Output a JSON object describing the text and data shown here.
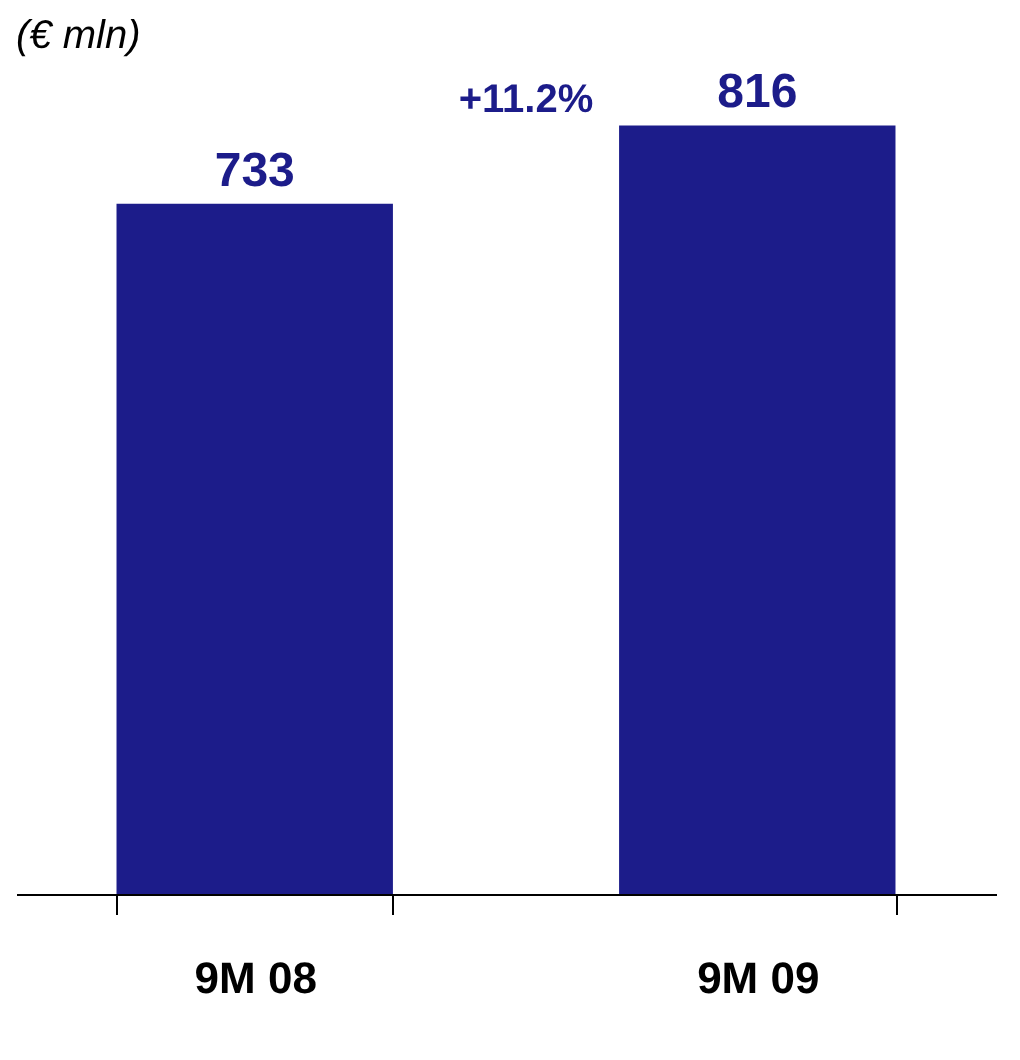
{
  "chart_data": {
    "type": "bar",
    "title": "(€ mln)",
    "categories": [
      "9M 08",
      "9M 09"
    ],
    "values": [
      733,
      816
    ],
    "color": "#1c1c8a",
    "data_labels": true,
    "annotations": [
      "+11.2%"
    ],
    "grid": false
  }
}
